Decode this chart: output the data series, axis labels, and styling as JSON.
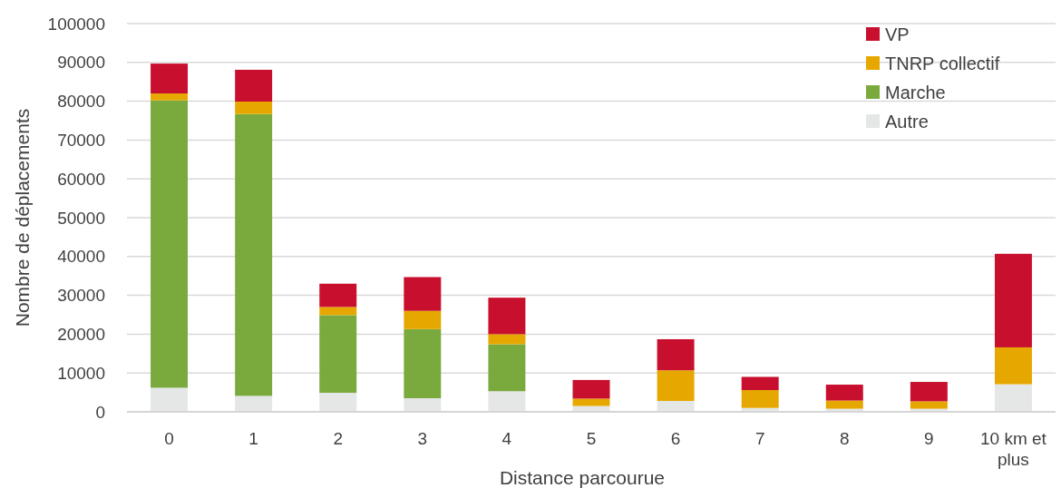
{
  "chart_data": {
    "type": "bar",
    "stacked": true,
    "xlabel": "Distance parcourue",
    "ylabel": "Nombre de déplacements",
    "categories": [
      "0",
      "1",
      "2",
      "3",
      "4",
      "5",
      "6",
      "7",
      "8",
      "9",
      "10 km et plus"
    ],
    "ylim": [
      0,
      100000
    ],
    "yticks": [
      0,
      10000,
      20000,
      30000,
      40000,
      50000,
      60000,
      70000,
      80000,
      90000,
      100000
    ],
    "grid": "y",
    "legend": "top right",
    "series": [
      {
        "name": "Autre",
        "color": "#e5e6e6",
        "values": [
          6200,
          4100,
          4900,
          3500,
          5300,
          1500,
          2800,
          1000,
          800,
          800,
          7100
        ]
      },
      {
        "name": "Marche",
        "color": "#7aaa3e",
        "values": [
          74000,
          72600,
          20000,
          17800,
          12100,
          0,
          0,
          0,
          0,
          0,
          0
        ]
      },
      {
        "name": "TNRP collectif",
        "color": "#e6a800",
        "values": [
          1800,
          3200,
          2100,
          4700,
          2600,
          1900,
          7900,
          4600,
          2100,
          1900,
          9500
        ]
      },
      {
        "name": "VP",
        "color": "#c8102e",
        "values": [
          7700,
          8200,
          6000,
          8700,
          9400,
          4800,
          8000,
          3400,
          4100,
          5000,
          24100
        ]
      }
    ]
  }
}
